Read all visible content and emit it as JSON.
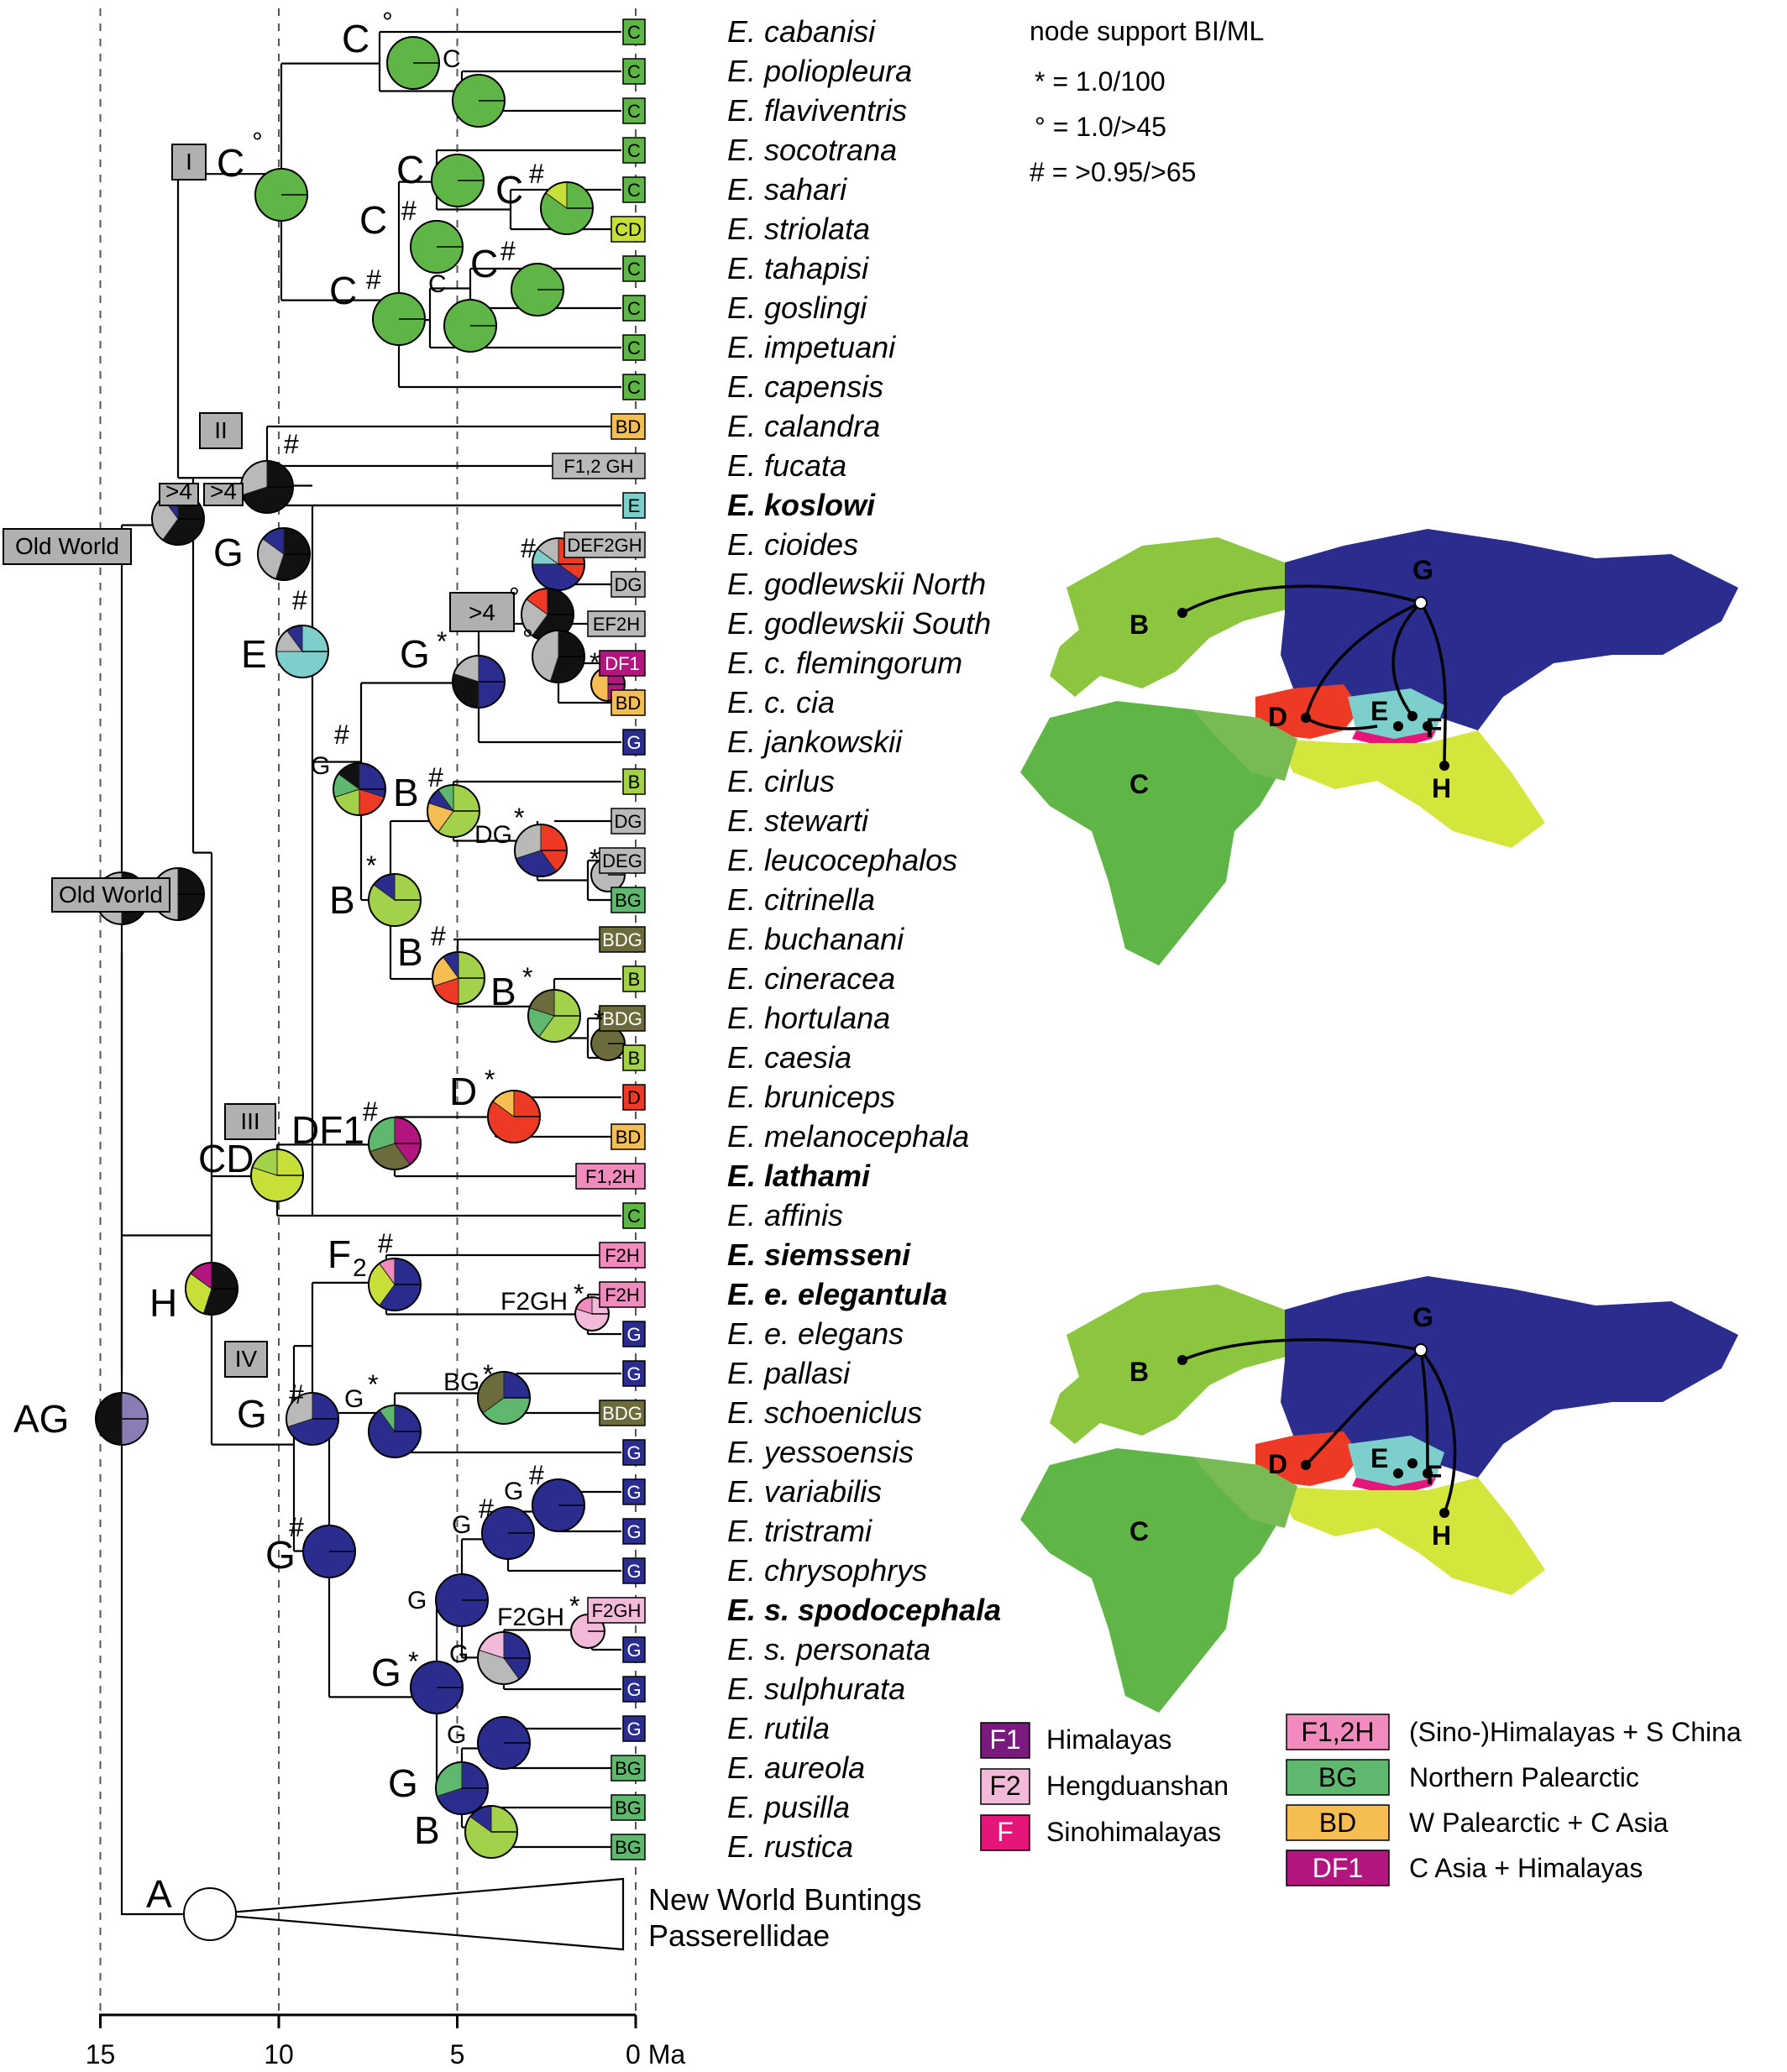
{
  "support_legend": {
    "title": "node support BI/ML",
    "lines": [
      "* = 1.0/100",
      "° = 1.0/>45",
      "# = >0.95/>65"
    ]
  },
  "axis": {
    "ticks": [
      {
        "value": 15,
        "label": "15"
      },
      {
        "value": 10,
        "label": "10"
      },
      {
        "value": 5,
        "label": "5"
      },
      {
        "value": 0,
        "label": "0 Ma"
      }
    ]
  },
  "colors": {
    "C": "#5fb546",
    "CD": "#c8df3a",
    "BD": "#f5bd52",
    "B": "#a3d24a",
    "G": "#2b2d8e",
    "E": "#7dcfcb",
    "D": "#ee3a24",
    "BG": "#5eb96e",
    "BDG": "#6b6b3c",
    "DF1": "#b3157f",
    "F1": "#7a1a7f",
    "F2": "#f2b9d8",
    "F": "#e6157a",
    "F12H": "#f18bbd",
    "gray": "#b9b9b9",
    "AG": "#8a7cb5"
  },
  "taxa": [
    {
      "name": "E. cabanisi",
      "area": "C",
      "color": "C",
      "bold": false
    },
    {
      "name": "E. poliopleura",
      "area": "C",
      "color": "C",
      "bold": false
    },
    {
      "name": "E. flaviventris",
      "area": "C",
      "color": "C",
      "bold": false
    },
    {
      "name": "E. socotrana",
      "area": "C",
      "color": "C",
      "bold": false
    },
    {
      "name": "E. sahari",
      "area": "C",
      "color": "C",
      "bold": false
    },
    {
      "name": "E. striolata",
      "area": "CD",
      "color": "CD",
      "bold": false
    },
    {
      "name": "E. tahapisi",
      "area": "C",
      "color": "C",
      "bold": false
    },
    {
      "name": "E. goslingi",
      "area": "C",
      "color": "C",
      "bold": false
    },
    {
      "name": "E. impetuani",
      "area": "C",
      "color": "C",
      "bold": false
    },
    {
      "name": "E. capensis",
      "area": "C",
      "color": "C",
      "bold": false
    },
    {
      "name": "E. calandra",
      "area": "BD",
      "color": "BD",
      "bold": false
    },
    {
      "name": "E. fucata",
      "area": "F1,2 GH",
      "color": "gray",
      "bold": false
    },
    {
      "name": "E. koslowi",
      "area": "E",
      "color": "E",
      "bold": true
    },
    {
      "name": "E. cioides",
      "area": "DEF2GH",
      "color": "gray",
      "bold": false
    },
    {
      "name": "E. godlewskii North",
      "area": "DG",
      "color": "gray",
      "bold": false
    },
    {
      "name": "E. godlewskii South",
      "area": "EF2H",
      "color": "gray",
      "bold": false
    },
    {
      "name": "E. c. flemingorum",
      "area": "DF1",
      "color": "DF1",
      "bold": false
    },
    {
      "name": "E. c. cia",
      "area": "BD",
      "color": "BD",
      "bold": false
    },
    {
      "name": "E. jankowskii",
      "area": "G",
      "color": "G",
      "bold": false
    },
    {
      "name": "E. cirlus",
      "area": "B",
      "color": "B",
      "bold": false
    },
    {
      "name": "E. stewarti",
      "area": "DG",
      "color": "gray",
      "bold": false
    },
    {
      "name": "E. leucocephalos",
      "area": "DEG",
      "color": "gray",
      "bold": false
    },
    {
      "name": "E. citrinella",
      "area": "BG",
      "color": "BG",
      "bold": false
    },
    {
      "name": "E. buchanani",
      "area": "BDG",
      "color": "BDG",
      "bold": false
    },
    {
      "name": "E. cineracea",
      "area": "B",
      "color": "B",
      "bold": false
    },
    {
      "name": "E. hortulana",
      "area": "BDG",
      "color": "BDG",
      "bold": false
    },
    {
      "name": "E. caesia",
      "area": "B",
      "color": "B",
      "bold": false
    },
    {
      "name": "E. bruniceps",
      "area": "D",
      "color": "D",
      "bold": false
    },
    {
      "name": "E. melanocephala",
      "area": "BD",
      "color": "BD",
      "bold": false
    },
    {
      "name": "E. lathami",
      "area": "F1,2H",
      "color": "F12H",
      "bold": true
    },
    {
      "name": "E. affinis",
      "area": "C",
      "color": "C",
      "bold": false
    },
    {
      "name": "E. siemsseni",
      "area": "F2H",
      "color": "F12H",
      "bold": true
    },
    {
      "name": "E. e. elegantula",
      "area": "F2H",
      "color": "F12H",
      "bold": true
    },
    {
      "name": "E. e. elegans",
      "area": "G",
      "color": "G",
      "bold": false
    },
    {
      "name": "E. pallasi",
      "area": "G",
      "color": "G",
      "bold": false
    },
    {
      "name": "E. schoeniclus",
      "area": "BDG",
      "color": "BDG",
      "bold": false
    },
    {
      "name": "E. yessoensis",
      "area": "G",
      "color": "G",
      "bold": false
    },
    {
      "name": "E. variabilis",
      "area": "G",
      "color": "G",
      "bold": false
    },
    {
      "name": "E. tristrami",
      "area": "G",
      "color": "G",
      "bold": false
    },
    {
      "name": "E. chrysophrys",
      "area": "G",
      "color": "G",
      "bold": false
    },
    {
      "name": "E. s. spodocephala",
      "area": "F2GH",
      "color": "F2",
      "bold": true
    },
    {
      "name": "E. s. personata",
      "area": "G",
      "color": "G",
      "bold": false
    },
    {
      "name": "E. sulphurata",
      "area": "G",
      "color": "G",
      "bold": false
    },
    {
      "name": "E. rutila",
      "area": "G",
      "color": "G",
      "bold": false
    },
    {
      "name": "E. aureola",
      "area": "BG",
      "color": "BG",
      "bold": false
    },
    {
      "name": "E. pusilla",
      "area": "BG",
      "color": "BG",
      "bold": false
    },
    {
      "name": "E. rustica",
      "area": "BG",
      "color": "BG",
      "bold": false
    }
  ],
  "outgroup": {
    "line1": "New World Buntings",
    "line2": "Passerellidae"
  },
  "clade_boxes": [
    "I",
    "II",
    "III",
    "IV"
  ],
  "gray_labels": {
    "old_world_1": "Old World",
    "old_world_2": "Old World",
    "gt4_a": ">4",
    "gt4_b": ">4",
    "gt4_c": ">4"
  },
  "node_labels": {
    "A": "A",
    "AG": "AG",
    "H": "H",
    "E": "E",
    "G": "G",
    "B": "B",
    "CD": "CD",
    "DF1": "DF1",
    "D": "D",
    "F2": "F",
    "F2sub": "2",
    "DG": "DG",
    "F2GH": "F2GH"
  },
  "area_legend": {
    "left": [
      {
        "code": "F1",
        "label": "Himalayas",
        "color": "F1"
      },
      {
        "code": "F2",
        "label": "Hengduanshan",
        "color": "F2"
      },
      {
        "code": "F",
        "label": "Sinohimalayas",
        "color": "F"
      }
    ],
    "right": [
      {
        "code": "F1,2H",
        "label": "(Sino-)Himalayas + S China",
        "color": "F12H"
      },
      {
        "code": "BG",
        "label": "Northern Palearctic",
        "color": "BG"
      },
      {
        "code": "BD",
        "label": "W Palearctic + C Asia",
        "color": "BD"
      },
      {
        "code": "DF1",
        "label": "C Asia + Himalayas",
        "color": "DF1"
      }
    ]
  },
  "map_labels": [
    "B",
    "C",
    "D",
    "E",
    "F",
    "G",
    "H"
  ]
}
